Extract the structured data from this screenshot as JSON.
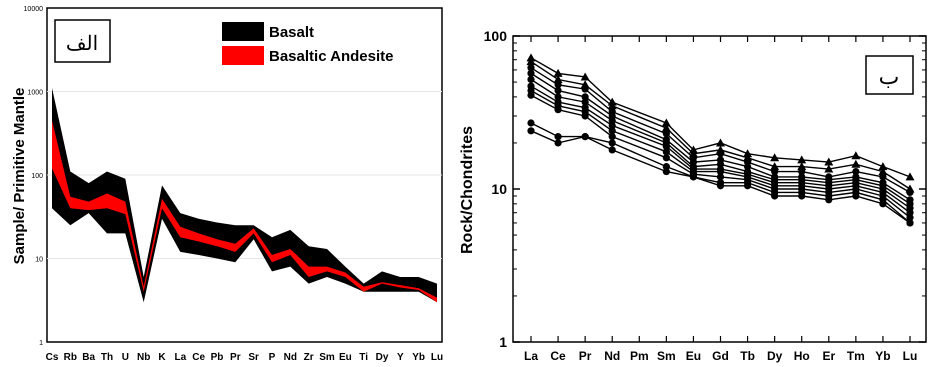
{
  "chart_data": [
    {
      "type": "area",
      "panel_label": "الف",
      "ylabel": "Sample/ Primitive Mantle",
      "yscale": "log",
      "ylim": [
        1,
        10000
      ],
      "ytick_labels": [
        "1",
        "10",
        "100",
        "1000",
        "10000"
      ],
      "categories": [
        "Cs",
        "Rb",
        "Ba",
        "Th",
        "U",
        "Nb",
        "K",
        "La",
        "Ce",
        "Pb",
        "Pr",
        "Sr",
        "P",
        "Nd",
        "Zr",
        "Sm",
        "Eu",
        "Ti",
        "Dy",
        "Y",
        "Yb",
        "Lu"
      ],
      "series": [
        {
          "name": "Basalt",
          "color": "#000000",
          "lower": [
            40,
            25,
            35,
            20,
            20,
            3,
            30,
            12,
            11,
            10,
            9,
            17,
            7,
            8,
            5,
            6,
            5,
            4,
            4,
            4,
            4,
            3
          ],
          "upper": [
            1100,
            110,
            80,
            110,
            90,
            6,
            75,
            35,
            30,
            27,
            25,
            25,
            18,
            22,
            14,
            13,
            8,
            5,
            7,
            6,
            6,
            5
          ]
        },
        {
          "name": "Basaltic Andesite",
          "color": "#ff0000",
          "lower": [
            120,
            40,
            38,
            40,
            34,
            4,
            40,
            18,
            16,
            14,
            12,
            20,
            9,
            11,
            6,
            7,
            6,
            4,
            5,
            4.5,
            4.2,
            3
          ],
          "upper": [
            450,
            55,
            48,
            60,
            48,
            4.6,
            52,
            24,
            20,
            17,
            15,
            23,
            11,
            13,
            8,
            8,
            6.8,
            4.6,
            5.2,
            4.8,
            4.4,
            3.4
          ]
        }
      ],
      "legend_position": "top-right"
    },
    {
      "type": "line",
      "panel_label": "ب",
      "ylabel": "Rock/Chondrites",
      "yscale": "log",
      "ylim": [
        1,
        100
      ],
      "ytick_labels": [
        "1",
        "10",
        "100"
      ],
      "categories": [
        "La",
        "Ce",
        "Pr",
        "Nd",
        "Pm",
        "Sm",
        "Eu",
        "Gd",
        "Tb",
        "Dy",
        "Ho",
        "Er",
        "Tm",
        "Yb",
        "Lu"
      ],
      "series": [
        {
          "values": [
            72,
            57,
            54,
            37,
            null,
            27,
            18,
            20,
            17,
            16,
            15.5,
            15,
            16.5,
            14,
            12
          ],
          "marker": "triangle"
        },
        {
          "values": [
            68,
            52,
            48,
            35,
            null,
            25,
            17,
            18,
            16,
            14,
            14,
            13.5,
            14.5,
            13,
            10
          ],
          "marker": "triangle"
        },
        {
          "values": [
            62,
            48,
            45,
            32,
            null,
            23,
            16,
            17,
            15,
            13,
            13,
            12,
            13,
            12,
            9.5
          ],
          "marker": "circle"
        },
        {
          "values": [
            57,
            44,
            40,
            30,
            null,
            21,
            15,
            15.5,
            14,
            12,
            12,
            11.5,
            12,
            11,
            8.5
          ],
          "marker": "circle"
        },
        {
          "values": [
            52,
            40,
            37,
            28,
            null,
            20,
            14,
            14.5,
            13,
            11.5,
            11.5,
            11,
            11.5,
            10.5,
            8
          ],
          "marker": "circle"
        },
        {
          "values": [
            47,
            37,
            34,
            26,
            null,
            19,
            13.5,
            13.5,
            12.5,
            11,
            11,
            10.5,
            11,
            10,
            7.5
          ],
          "marker": "circle"
        },
        {
          "values": [
            44,
            35,
            32,
            24,
            null,
            17.5,
            13,
            13,
            12,
            10.5,
            10.5,
            10,
            10.5,
            9.5,
            7
          ],
          "marker": "circle"
        },
        {
          "values": [
            41,
            33,
            30,
            22,
            null,
            16,
            12.5,
            12,
            11.5,
            10,
            10,
            9.5,
            10,
            9,
            6.5
          ],
          "marker": "circle"
        },
        {
          "values": [
            27,
            22,
            22,
            20,
            null,
            14,
            12,
            11,
            11,
            9.5,
            9.5,
            9,
            9.5,
            8.5,
            6
          ],
          "marker": "circle"
        },
        {
          "values": [
            24,
            20,
            22,
            18,
            null,
            13,
            12,
            10.5,
            10.5,
            9,
            9,
            8.5,
            9,
            8,
            6
          ],
          "marker": "circle"
        }
      ]
    }
  ]
}
